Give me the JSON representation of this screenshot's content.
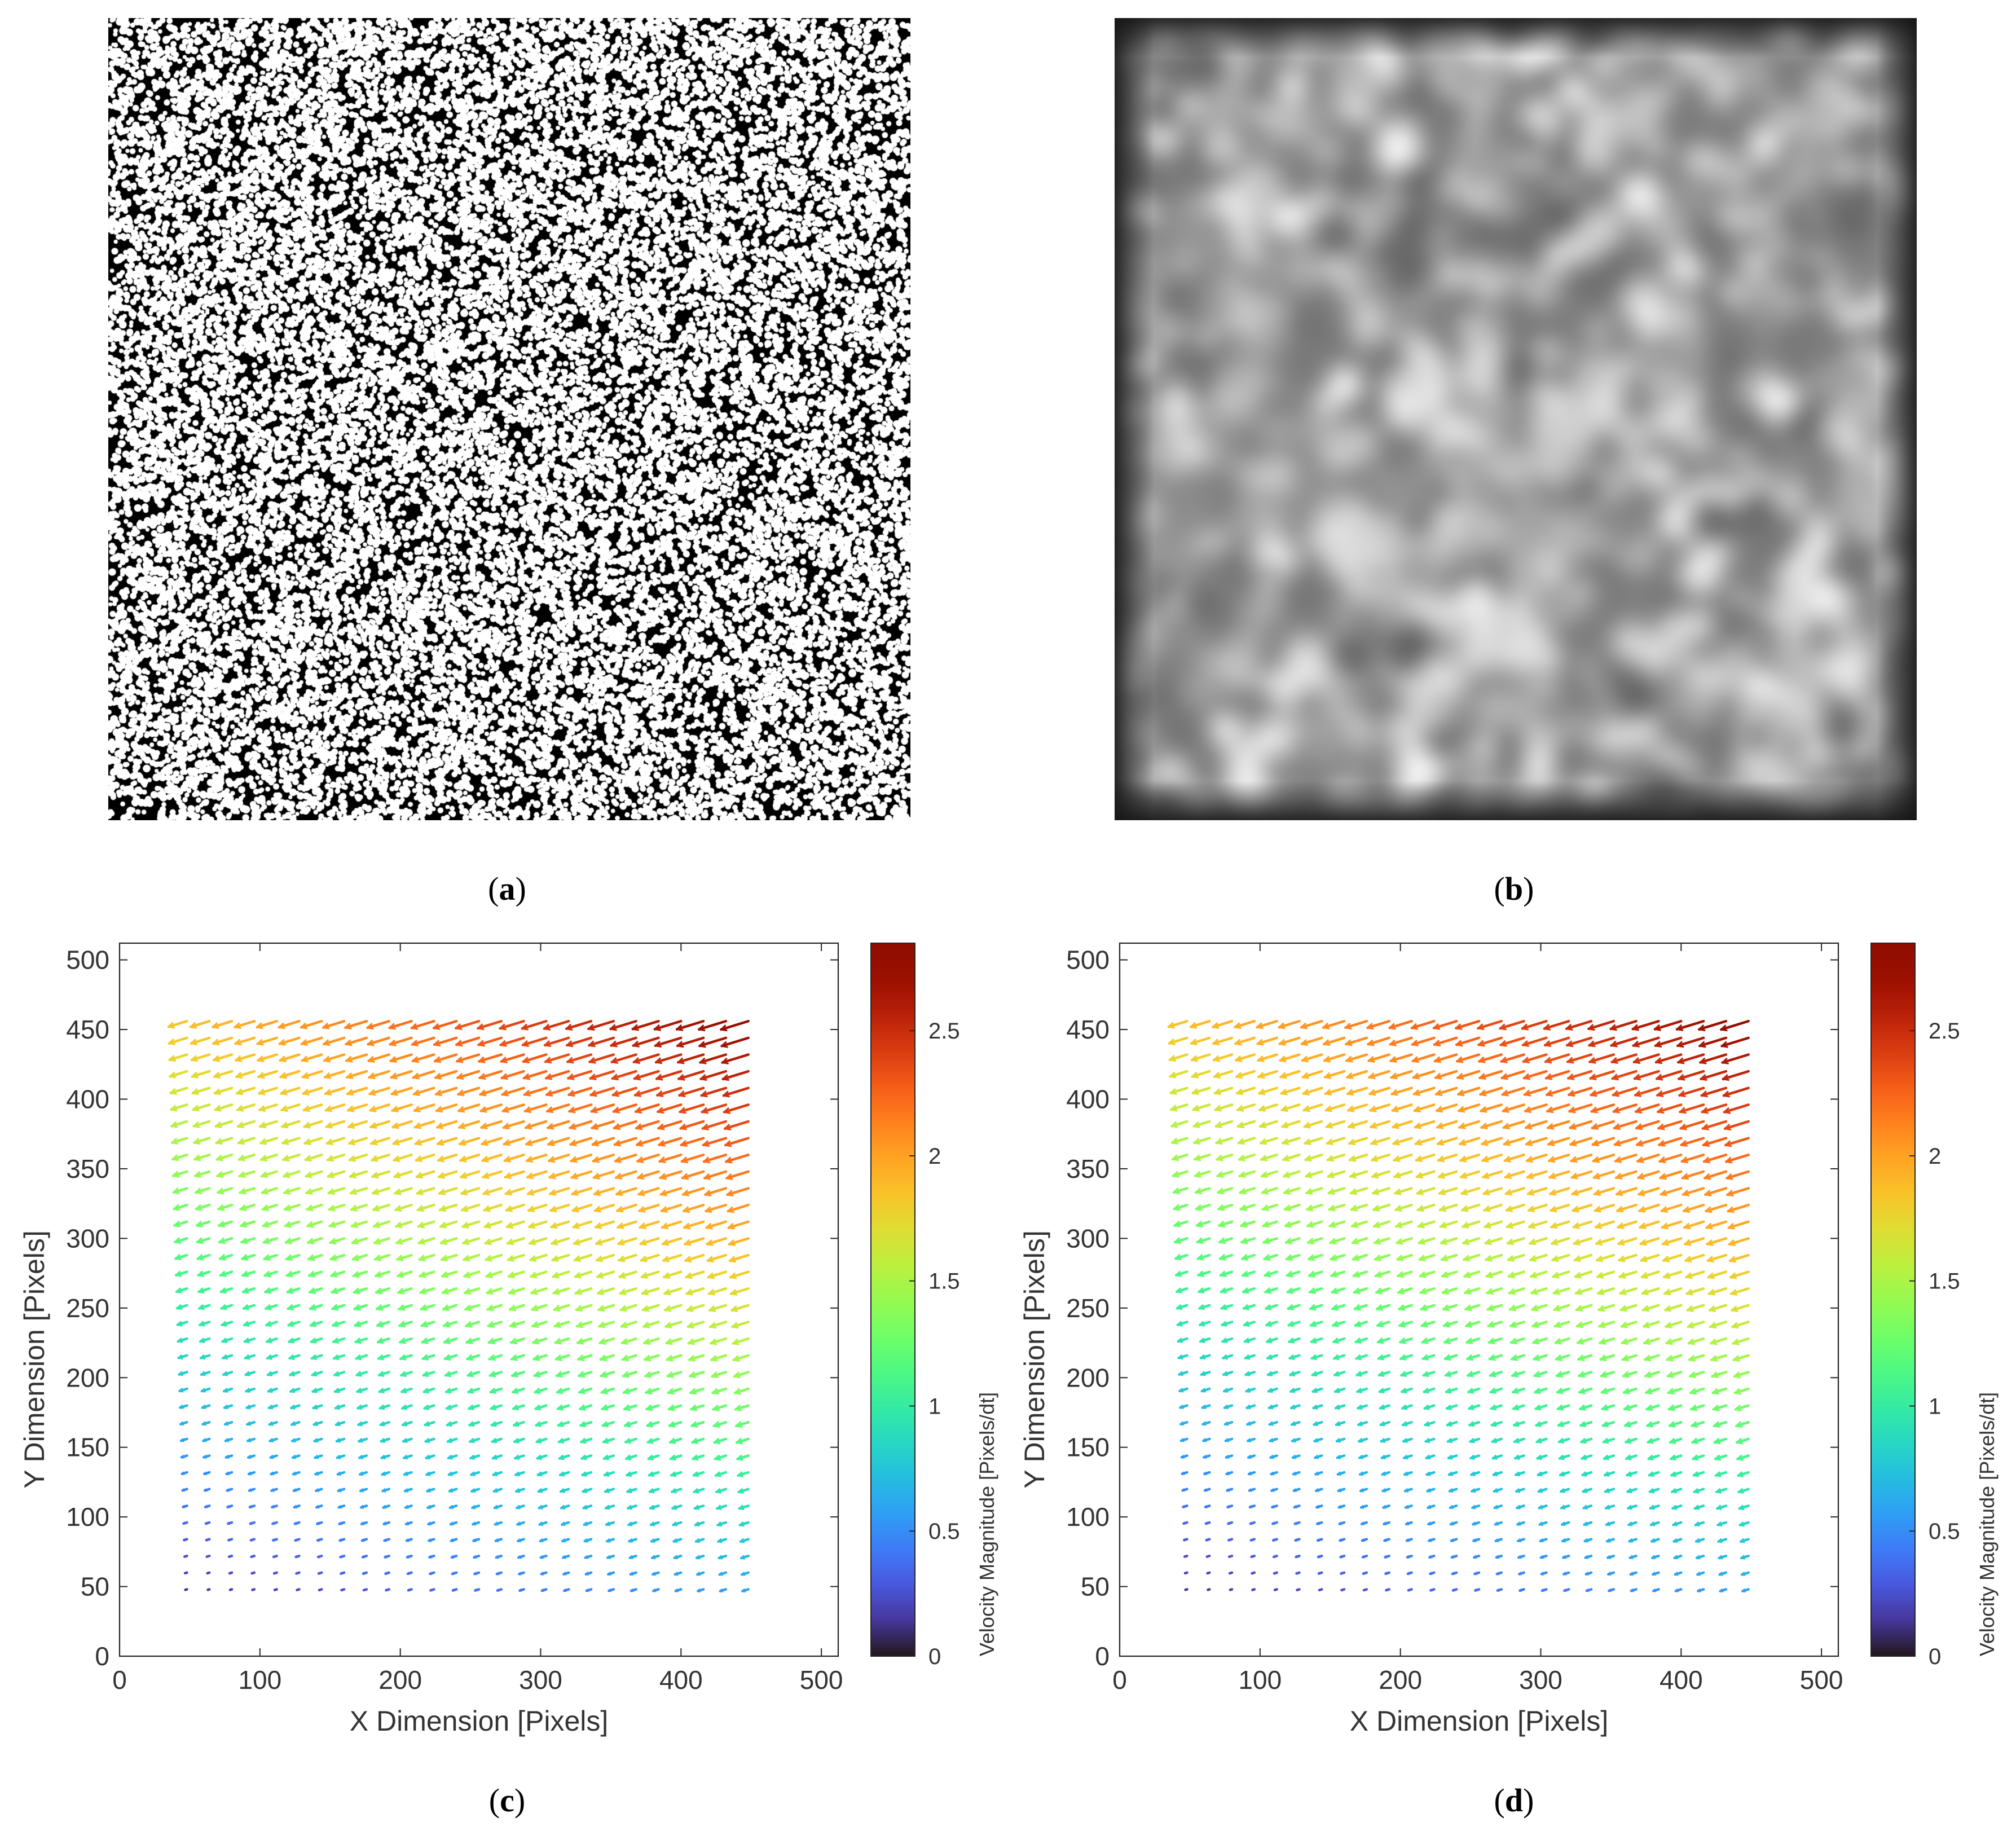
{
  "panels": [
    {
      "letter": "a",
      "caption_open": "(",
      "caption_close": ")"
    },
    {
      "letter": "b",
      "caption_open": "(",
      "caption_close": ")"
    },
    {
      "letter": "c",
      "caption_open": "(",
      "caption_close": ")"
    },
    {
      "letter": "d",
      "caption_open": "(",
      "caption_close": ")"
    }
  ],
  "chart_data": [
    {
      "type": "quiver",
      "panel": "c",
      "xlabel": "X Dimension [Pixels]",
      "ylabel": "Y Dimension [Pixels]",
      "xlim": [
        0,
        512
      ],
      "ylim": [
        0,
        512
      ],
      "xticks": [
        0,
        100,
        200,
        300,
        400,
        500
      ],
      "yticks": [
        0,
        50,
        100,
        150,
        200,
        250,
        300,
        350,
        400,
        450,
        500
      ],
      "grid_x": {
        "start": 48,
        "stop": 456,
        "step": 16
      },
      "grid_y": {
        "start": 48,
        "stop": 464,
        "step": 12
      },
      "vector_direction": "pointing left and slightly down",
      "magnitude_range": [
        0,
        2.8
      ],
      "colorbar": {
        "label": "Velocity Magnitude [Pixels/dt]",
        "ticks": [
          0,
          0.5,
          1,
          1.5,
          2,
          2.5
        ],
        "range": [
          0,
          2.85
        ],
        "colormap": "turbo"
      }
    },
    {
      "type": "quiver",
      "panel": "d",
      "xlabel": "X Dimension [Pixels]",
      "ylabel": "Y Dimension [Pixels]",
      "xlim": [
        0,
        512
      ],
      "ylim": [
        0,
        512
      ],
      "xticks": [
        0,
        100,
        200,
        300,
        400,
        500
      ],
      "yticks": [
        0,
        50,
        100,
        150,
        200,
        250,
        300,
        350,
        400,
        450,
        500
      ],
      "grid_x": {
        "start": 48,
        "stop": 456,
        "step": 16
      },
      "grid_y": {
        "start": 48,
        "stop": 464,
        "step": 12
      },
      "vector_direction": "pointing left and slightly down",
      "magnitude_range": [
        0,
        2.8
      ],
      "colorbar": {
        "label": "Velocity Magnitude [Pixels/dt]",
        "ticks": [
          0,
          0.5,
          1,
          1.5,
          2,
          2.5
        ],
        "range": [
          0,
          2.85
        ],
        "colormap": "turbo"
      }
    }
  ]
}
